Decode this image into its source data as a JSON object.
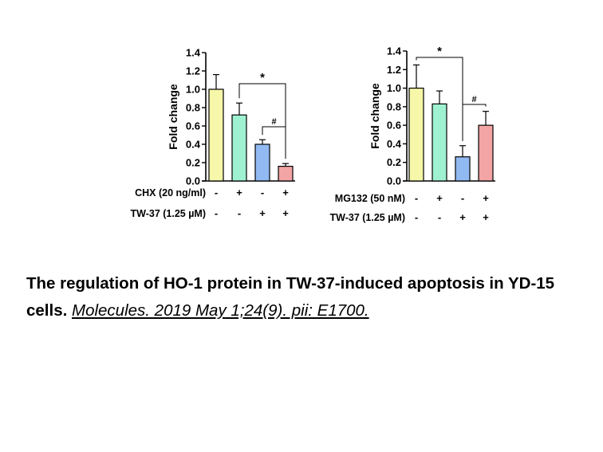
{
  "chart_data": [
    {
      "type": "bar",
      "ylabel": "Fold change",
      "ylim": [
        0,
        1.4
      ],
      "yticks": [
        "0.0",
        "0.2",
        "0.4",
        "0.6",
        "0.8",
        "1.0",
        "1.2",
        "1.4"
      ],
      "values": [
        1.0,
        0.72,
        0.4,
        0.16
      ],
      "errors": [
        0.16,
        0.13,
        0.05,
        0.03
      ],
      "colors": [
        "#f6f7a8",
        "#9ff2d1",
        "#92baf2",
        "#f3a4a4"
      ],
      "conditions": [
        {
          "label": "CHX (20 ng/ml)",
          "signs": [
            "-",
            "+",
            "-",
            "+"
          ]
        },
        {
          "label": "TW-37 (1.25 µM)",
          "signs": [
            "-",
            "-",
            "+",
            "+"
          ]
        }
      ],
      "annotations": [
        {
          "text": "*",
          "from": 1,
          "to": 3
        },
        {
          "text": "#",
          "from": 2,
          "to": 3
        }
      ]
    },
    {
      "type": "bar",
      "ylabel": "Fold change",
      "ylim": [
        0,
        1.4
      ],
      "yticks": [
        "0.0",
        "0.2",
        "0.4",
        "0.6",
        "0.8",
        "1.0",
        "1.2",
        "1.4"
      ],
      "values": [
        1.0,
        0.83,
        0.26,
        0.6
      ],
      "errors": [
        0.25,
        0.14,
        0.12,
        0.15
      ],
      "colors": [
        "#f6f7a8",
        "#9ff2d1",
        "#92baf2",
        "#f3a4a4"
      ],
      "conditions": [
        {
          "label": "MG132 (50 nM)",
          "signs": [
            "-",
            "+",
            "-",
            "+"
          ]
        },
        {
          "label": "TW-37 (1.25 µM)",
          "signs": [
            "-",
            "-",
            "+",
            "+"
          ]
        }
      ],
      "annotations": [
        {
          "text": "*",
          "from": 0,
          "to": 2
        },
        {
          "text": "#",
          "from": 2,
          "to": 3
        }
      ]
    }
  ],
  "caption": {
    "text": "The regulation of HO-1 protein in TW-37-induced apoptosis in YD-15 cells. ",
    "citation": "Molecules. 2019 May 1;24(9). pii: E1700."
  }
}
